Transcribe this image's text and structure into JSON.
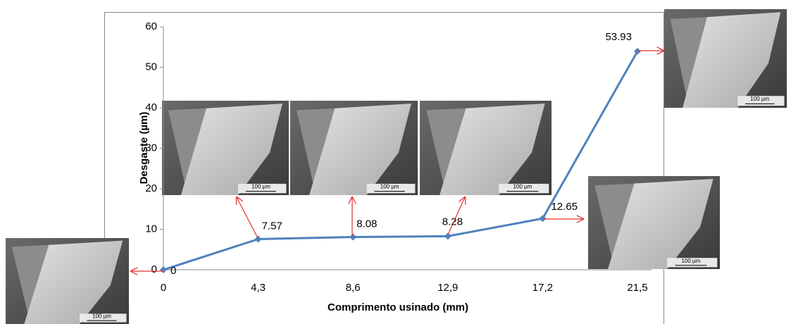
{
  "chart_data": {
    "type": "line",
    "x_label": "Comprimento usinado (mm)",
    "y_label": "Desgaste (µm)",
    "categories": [
      "0",
      "4,3",
      "8,6",
      "12,9",
      "17,2",
      "21,5"
    ],
    "values": [
      0,
      7.57,
      8.08,
      8.28,
      12.65,
      53.93
    ],
    "color": "#4f81bd",
    "ylim": [
      0,
      60
    ],
    "yticks": [
      0,
      10,
      20,
      30,
      40,
      50,
      60
    ],
    "grid": false,
    "scale_bar_labels": [
      "100 µm",
      "100 µm",
      "100 µm",
      "100 µm",
      "100 µm",
      "100 µm"
    ]
  }
}
